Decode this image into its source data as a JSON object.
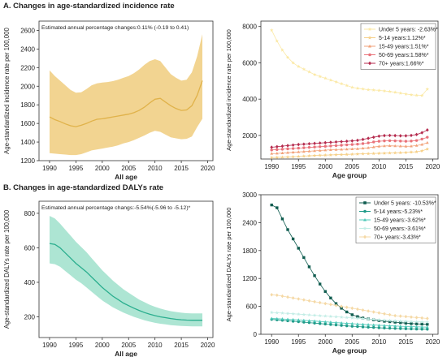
{
  "section_a_title": "A. Changes in age-standardized incidence rate",
  "section_b_title": "B. Changes in age-standardized DALYs rate",
  "chart_data": [
    {
      "id": "a1",
      "type": "area",
      "annotation": "Estimated annual percentage changes:0.11% (-0.19 to 0.41)",
      "xlabel": "All age",
      "ylabel": "Age-standardized incidence rate per 100,000",
      "xlim": [
        1988,
        2021
      ],
      "ylim": [
        1200,
        2700
      ],
      "xticks": [
        1990,
        1995,
        2000,
        2005,
        2010,
        2015,
        2020
      ],
      "yticks": [
        1200,
        1400,
        1600,
        1800,
        2000,
        2200,
        2400,
        2600
      ],
      "color": "#e0b24a",
      "band_color": "#f0cc7e",
      "x": [
        1990,
        1991,
        1992,
        1993,
        1994,
        1995,
        1996,
        1997,
        1998,
        1999,
        2000,
        2001,
        2002,
        2003,
        2004,
        2005,
        2006,
        2007,
        2008,
        2009,
        2010,
        2011,
        2012,
        2013,
        2014,
        2015,
        2016,
        2017,
        2018,
        2019
      ],
      "mean": [
        1670,
        1640,
        1620,
        1595,
        1575,
        1565,
        1580,
        1600,
        1625,
        1645,
        1650,
        1660,
        1670,
        1680,
        1690,
        1700,
        1715,
        1740,
        1775,
        1820,
        1860,
        1870,
        1830,
        1790,
        1760,
        1740,
        1745,
        1790,
        1900,
        2060
      ],
      "upper": [
        2170,
        2110,
        2060,
        2010,
        1960,
        1930,
        1935,
        1970,
        2010,
        2030,
        2040,
        2045,
        2055,
        2070,
        2090,
        2110,
        2140,
        2180,
        2230,
        2270,
        2290,
        2270,
        2200,
        2130,
        2090,
        2060,
        2070,
        2150,
        2320,
        2560
      ],
      "lower": [
        1280,
        1275,
        1270,
        1265,
        1260,
        1260,
        1270,
        1290,
        1310,
        1320,
        1330,
        1340,
        1350,
        1365,
        1385,
        1400,
        1420,
        1445,
        1470,
        1500,
        1520,
        1510,
        1480,
        1450,
        1440,
        1430,
        1435,
        1460,
        1560,
        1650
      ]
    },
    {
      "id": "a2",
      "type": "scatter",
      "xlabel": "Age group",
      "ylabel": "Age-standardized incidence rate per 100,000",
      "xlim": [
        1988,
        2021
      ],
      "ylim": [
        700,
        8300
      ],
      "xticks": [
        1990,
        1995,
        2000,
        2005,
        2010,
        2015,
        2020
      ],
      "yticks": [
        2000,
        4000,
        6000,
        8000
      ],
      "x": [
        1990,
        1991,
        1992,
        1993,
        1994,
        1995,
        1996,
        1997,
        1998,
        1999,
        2000,
        2001,
        2002,
        2003,
        2004,
        2005,
        2006,
        2007,
        2008,
        2009,
        2010,
        2011,
        2012,
        2013,
        2014,
        2015,
        2016,
        2017,
        2018,
        2019
      ],
      "series": [
        {
          "name": "Under 5 years: -2.63%*",
          "color": "#fbe9a6",
          "marker": "star",
          "values": [
            7800,
            7200,
            6700,
            6300,
            6000,
            5800,
            5650,
            5500,
            5350,
            5250,
            5150,
            5050,
            4950,
            4850,
            4750,
            4650,
            4600,
            4560,
            4520,
            4500,
            4480,
            4450,
            4420,
            4380,
            4330,
            4280,
            4240,
            4210,
            4200,
            4550
          ]
        },
        {
          "name": "5-14 years:1.12%*",
          "color": "#f6cf87",
          "marker": "star",
          "values": [
            780,
            790,
            800,
            810,
            825,
            840,
            860,
            875,
            890,
            905,
            915,
            925,
            935,
            945,
            955,
            965,
            975,
            985,
            995,
            1005,
            1015,
            1020,
            1030,
            1040,
            1050,
            1060,
            1080,
            1100,
            1150,
            1250
          ]
        },
        {
          "name": "15-49 years:1.51%*",
          "color": "#f2a27a",
          "marker": "triangle",
          "values": [
            1000,
            1010,
            1030,
            1050,
            1070,
            1090,
            1110,
            1130,
            1150,
            1170,
            1190,
            1210,
            1220,
            1230,
            1240,
            1250,
            1265,
            1290,
            1320,
            1360,
            1400,
            1420,
            1430,
            1420,
            1410,
            1400,
            1410,
            1440,
            1500,
            1600
          ]
        },
        {
          "name": "50-69 years:1.58%*",
          "color": "#e9727a",
          "marker": "circle",
          "values": [
            1200,
            1220,
            1240,
            1260,
            1280,
            1300,
            1320,
            1340,
            1360,
            1380,
            1400,
            1420,
            1440,
            1460,
            1480,
            1500,
            1520,
            1550,
            1590,
            1640,
            1680,
            1700,
            1710,
            1700,
            1690,
            1680,
            1690,
            1720,
            1800,
            1900
          ]
        },
        {
          "name": "70+ years:1.66%*",
          "color": "#b52b4e",
          "marker": "diamond",
          "values": [
            1350,
            1380,
            1410,
            1440,
            1470,
            1500,
            1520,
            1540,
            1560,
            1580,
            1600,
            1620,
            1640,
            1660,
            1680,
            1700,
            1730,
            1780,
            1840,
            1900,
            1960,
            1990,
            2000,
            1990,
            1980,
            1980,
            2000,
            2050,
            2150,
            2300
          ]
        }
      ],
      "legend_position": "top-right"
    },
    {
      "id": "b1",
      "type": "area",
      "annotation": "Estimated annual percentage changs:-5.54%(-5.96 to -5.12)*",
      "xlabel": "All age",
      "ylabel": "Age-standardized DALYs rate per 100,000",
      "xlim": [
        1988,
        2021
      ],
      "ylim": [
        80,
        870
      ],
      "xticks": [
        1990,
        1995,
        2000,
        2005,
        2010,
        2015,
        2020
      ],
      "yticks": [
        200,
        400,
        600,
        800
      ],
      "color": "#2aae8e",
      "band_color": "#9fe0cb",
      "x": [
        1990,
        1991,
        1992,
        1993,
        1994,
        1995,
        1996,
        1997,
        1998,
        1999,
        2000,
        2001,
        2002,
        2003,
        2004,
        2005,
        2006,
        2007,
        2008,
        2009,
        2010,
        2011,
        2012,
        2013,
        2014,
        2015,
        2016,
        2017,
        2018,
        2019
      ],
      "mean": [
        625,
        620,
        600,
        570,
        540,
        510,
        485,
        460,
        430,
        400,
        370,
        345,
        320,
        300,
        280,
        265,
        250,
        237,
        225,
        215,
        207,
        200,
        195,
        190,
        186,
        183,
        181,
        180,
        180,
        180
      ],
      "upper": [
        785,
        770,
        740,
        705,
        670,
        635,
        605,
        575,
        540,
        505,
        470,
        440,
        410,
        385,
        360,
        340,
        320,
        300,
        285,
        270,
        258,
        248,
        240,
        233,
        228,
        224,
        221,
        220,
        220,
        220
      ],
      "lower": [
        510,
        505,
        490,
        465,
        440,
        415,
        395,
        370,
        345,
        320,
        295,
        275,
        255,
        240,
        225,
        212,
        200,
        190,
        180,
        172,
        165,
        160,
        156,
        152,
        149,
        147,
        146,
        145,
        145,
        145
      ]
    },
    {
      "id": "b2",
      "type": "line",
      "xlabel": "Age group",
      "ylabel": "Age-standardized DALYs rate per 100,000",
      "xlim": [
        1988,
        2021
      ],
      "ylim": [
        0,
        3000
      ],
      "xticks": [
        1990,
        1995,
        2000,
        2005,
        2010,
        2015,
        2020
      ],
      "yticks": [
        0,
        600,
        1200,
        1800,
        2400,
        3000
      ],
      "x": [
        1990,
        1991,
        1992,
        1993,
        1994,
        1995,
        1996,
        1997,
        1998,
        1999,
        2000,
        2001,
        2002,
        2003,
        2004,
        2005,
        2006,
        2007,
        2008,
        2009,
        2010,
        2011,
        2012,
        2013,
        2014,
        2015,
        2016,
        2017,
        2018,
        2019
      ],
      "series": [
        {
          "name": "Under 5 years: -10.53%*",
          "color": "#0f5c4f",
          "marker": "square",
          "values": [
            2780,
            2720,
            2480,
            2250,
            2050,
            1850,
            1650,
            1450,
            1260,
            1080,
            920,
            780,
            660,
            560,
            480,
            420,
            380,
            350,
            330,
            310,
            295,
            280,
            270,
            260,
            250,
            240,
            230,
            225,
            220,
            215
          ]
        },
        {
          "name": "5-14 years:-5.23%*",
          "color": "#1e9a88",
          "marker": "circle",
          "values": [
            320,
            310,
            300,
            290,
            280,
            270,
            260,
            250,
            240,
            230,
            220,
            210,
            200,
            190,
            180,
            172,
            165,
            158,
            152,
            146,
            140,
            135,
            130,
            126,
            122,
            118,
            115,
            112,
            110,
            108
          ]
        },
        {
          "name": "15-49 years:-3.62%*",
          "color": "#4ec8b8",
          "marker": "triangle",
          "values": [
            340,
            335,
            330,
            322,
            315,
            308,
            300,
            292,
            284,
            276,
            268,
            260,
            252,
            244,
            236,
            228,
            220,
            213,
            206,
            200,
            194,
            188,
            183,
            178,
            173,
            168,
            164,
            160,
            157,
            154
          ]
        },
        {
          "name": "50-69 years:-3.61%*",
          "color": "#c3ede6",
          "marker": "star",
          "values": [
            470,
            462,
            455,
            447,
            440,
            432,
            424,
            416,
            408,
            400,
            392,
            384,
            376,
            368,
            360,
            352,
            344,
            336,
            328,
            320,
            312,
            305,
            298,
            291,
            285,
            279,
            274,
            270,
            266,
            262
          ]
        },
        {
          "name": "70+ years:-3.43%*",
          "color": "#f5d9a6",
          "marker": "diamond",
          "values": [
            850,
            840,
            820,
            800,
            780,
            760,
            740,
            720,
            700,
            680,
            660,
            640,
            620,
            600,
            580,
            560,
            540,
            520,
            500,
            480,
            460,
            440,
            420,
            400,
            390,
            380,
            370,
            360,
            350,
            340
          ]
        }
      ],
      "legend_position": "top-right"
    }
  ]
}
